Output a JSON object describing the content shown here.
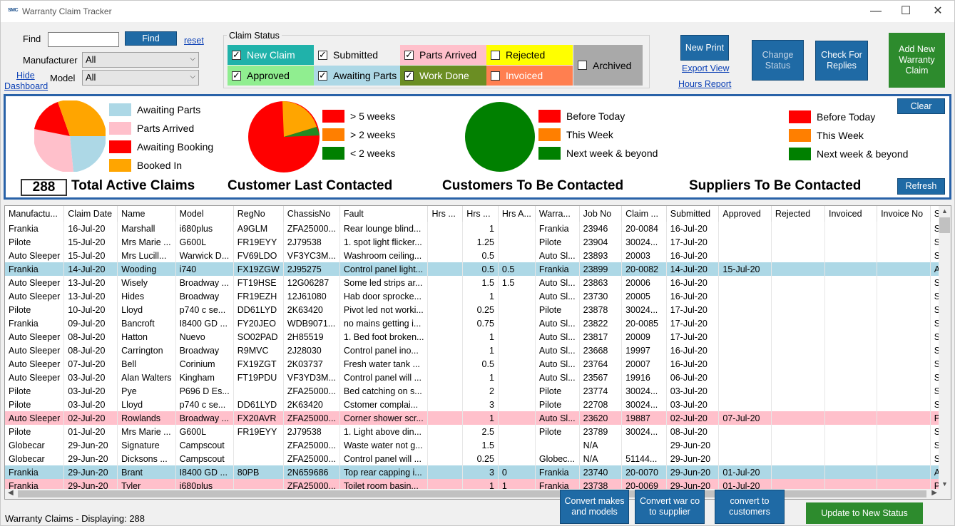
{
  "window": {
    "title": "Warranty Claim Tracker",
    "icon_text": "SMC",
    "minimize": "—",
    "maximize": "☐",
    "close": "✕"
  },
  "filters": {
    "find_label": "Find",
    "find_value": "",
    "find_button": "Find",
    "reset": "reset",
    "manufacturer_label": "Manufacturer",
    "manufacturer_value": "All",
    "model_label": "Model",
    "model_value": "All",
    "hide_dashboard_line1": "Hide",
    "hide_dashboard_line2": "Dashboard"
  },
  "claim_status": {
    "title": "Claim Status",
    "items": [
      {
        "label": "New Claim",
        "checked": true,
        "color": "#20b2aa",
        "text_color": "#ffffff"
      },
      {
        "label": "Submitted",
        "checked": true,
        "color": "#f0f0f0",
        "text_color": "#000000"
      },
      {
        "label": "Parts Arrived",
        "checked": true,
        "color": "#ffc0cb",
        "text_color": "#000000"
      },
      {
        "label": "Rejected",
        "checked": false,
        "color": "#ffff00",
        "text_color": "#000000"
      },
      {
        "label": "Archived",
        "checked": false,
        "color": "#a9a9a9",
        "text_color": "#000000"
      },
      {
        "label": "Approved",
        "checked": true,
        "color": "#90ee90",
        "text_color": "#000000"
      },
      {
        "label": "Awaiting Parts",
        "checked": true,
        "color": "#add8e6",
        "text_color": "#000000"
      },
      {
        "label": "Work Done",
        "checked": true,
        "color": "#6b8e23",
        "text_color": "#ffffff"
      },
      {
        "label": "Invoiced",
        "checked": false,
        "color": "#ff7f50",
        "text_color": "#ffffff"
      }
    ]
  },
  "actions": {
    "new_print": "New Print",
    "export_view": "Export View",
    "hours_report": "Hours Report",
    "change_status": [
      "Change",
      "Status"
    ],
    "check_replies": [
      "Check For",
      "Replies"
    ],
    "add_new": [
      "Add New",
      "Warranty",
      "Claim"
    ]
  },
  "dashboard": {
    "clear": "Clear",
    "refresh": "Refresh",
    "total_count": "288",
    "total_label": "Total Active Claims",
    "status_legend": [
      {
        "label": "Awaiting Parts",
        "color": "#add8e6"
      },
      {
        "label": "Parts Arrived",
        "color": "#ffc0cb"
      },
      {
        "label": "Awaiting Booking",
        "color": "#ff0000"
      },
      {
        "label": "Booked In",
        "color": "#ffa500"
      }
    ],
    "customer_last_contacted": {
      "title": "Customer Last Contacted",
      "legend": [
        {
          "label": "> 5 weeks",
          "color": "#ff0000"
        },
        {
          "label": "> 2 weeks",
          "color": "#ff7f00"
        },
        {
          "label": "< 2 weeks",
          "color": "#008000"
        }
      ]
    },
    "customers_to_contact": {
      "title": "Customers To Be Contacted",
      "legend": [
        {
          "label": "Before Today",
          "color": "#ff0000"
        },
        {
          "label": "This Week",
          "color": "#ff7f00"
        },
        {
          "label": "Next week & beyond",
          "color": "#008000"
        }
      ]
    },
    "suppliers_to_contact": {
      "title": "Suppliers To Be Contacted",
      "legend": [
        {
          "label": "Before Today",
          "color": "#ff0000"
        },
        {
          "label": "This Week",
          "color": "#ff7f00"
        },
        {
          "label": "Next week & beyond",
          "color": "#008000"
        }
      ]
    }
  },
  "table": {
    "columns": [
      "Manufactu...",
      "Claim Date",
      "Name",
      "Model",
      "RegNo",
      "ChassisNo",
      "Fault",
      "Hrs ...",
      "Hrs ...",
      "Hrs A...",
      "Warra...",
      "Job No",
      "Claim ...",
      "Submitted",
      "Approved",
      "Rejected",
      "Invoiced",
      "Invoice No",
      "S"
    ],
    "rows": [
      {
        "style": "",
        "cells": [
          "Frankia",
          "16-Jul-20",
          "Marshall",
          "i680plus",
          "A9GLM",
          "ZFA25000...",
          "Rear lounge blind...",
          "",
          "1",
          "",
          "Frankia",
          "23946",
          "20-0084",
          "16-Jul-20",
          "",
          "",
          "",
          "",
          "Su"
        ]
      },
      {
        "style": "",
        "cells": [
          "Pilote",
          "15-Jul-20",
          "Mrs Marie ...",
          "G600L",
          "FR19EYY",
          "2J79538",
          "1. spot light flicker...",
          "",
          "1.25",
          "",
          "Pilote",
          "23904",
          "30024...",
          "17-Jul-20",
          "",
          "",
          "",
          "",
          "Su"
        ]
      },
      {
        "style": "",
        "cells": [
          "Auto Sleeper",
          "15-Jul-20",
          "Mrs Lucill...",
          "Warwick D...",
          "FV69LDO",
          "VF3YC3M...",
          "Washroom ceiling...",
          "",
          "0.5",
          "",
          "Auto Sl...",
          "23893",
          "20003",
          "16-Jul-20",
          "",
          "",
          "",
          "",
          "Su"
        ]
      },
      {
        "style": "sel",
        "cells": [
          "Frankia",
          "14-Jul-20",
          "Wooding",
          "i740",
          "FX19ZGW",
          "2J95275",
          "Control panel light...",
          "",
          "0.5",
          "0.5",
          "Frankia",
          "23899",
          "20-0082",
          "14-Jul-20",
          "15-Jul-20",
          "",
          "",
          "",
          "Aw"
        ]
      },
      {
        "style": "",
        "cells": [
          "Auto Sleeper",
          "13-Jul-20",
          "Wisely",
          "Broadway ...",
          "FT19HSE",
          "12G06287",
          "Some led strips ar...",
          "",
          "1.5",
          "1.5",
          "Auto Sl...",
          "23863",
          "20006",
          "16-Jul-20",
          "",
          "",
          "",
          "",
          "Su"
        ]
      },
      {
        "style": "",
        "cells": [
          "Auto Sleeper",
          "13-Jul-20",
          "Hides",
          "Broadway",
          "FR19EZH",
          "12J61080",
          "Hab door sprocke...",
          "",
          "1",
          "",
          "Auto Sl...",
          "23730",
          "20005",
          "16-Jul-20",
          "",
          "",
          "",
          "",
          "Su"
        ]
      },
      {
        "style": "",
        "cells": [
          "Pilote",
          "10-Jul-20",
          "Lloyd",
          "p740 c se...",
          "DD61LYD",
          "2K63420",
          "Pivot led not worki...",
          "",
          "0.25",
          "",
          "Pilote",
          "23878",
          "30024...",
          "17-Jul-20",
          "",
          "",
          "",
          "",
          "Su"
        ]
      },
      {
        "style": "",
        "cells": [
          "Frankia",
          "09-Jul-20",
          "Bancroft",
          "I8400 GD ...",
          "FY20JEO",
          "WDB9071...",
          "no mains getting i...",
          "",
          "0.75",
          "",
          "Auto Sl...",
          "23822",
          "20-0085",
          "17-Jul-20",
          "",
          "",
          "",
          "",
          "Su"
        ]
      },
      {
        "style": "",
        "cells": [
          "Auto Sleeper",
          "08-Jul-20",
          "Hatton",
          "Nuevo",
          "SO02PAD",
          "2H85519",
          "1. Bed foot broken...",
          "",
          "1",
          "",
          "Auto Sl...",
          "23817",
          "20009",
          "17-Jul-20",
          "",
          "",
          "",
          "",
          "Su"
        ]
      },
      {
        "style": "",
        "cells": [
          "Auto Sleeper",
          "08-Jul-20",
          "Carrington",
          "Broadway",
          "R9MVC",
          "2J28030",
          "Control panel ino...",
          "",
          "1",
          "",
          "Auto Sl...",
          "23668",
          "19997",
          "16-Jul-20",
          "",
          "",
          "",
          "",
          "Su"
        ]
      },
      {
        "style": "",
        "cells": [
          "Auto Sleeper",
          "07-Jul-20",
          "Bell",
          "Corinium",
          "FX19ZGT",
          "2K03737",
          "Fresh water tank ...",
          "",
          "0.5",
          "",
          "Auto Sl...",
          "23764",
          "20007",
          "16-Jul-20",
          "",
          "",
          "",
          "",
          "Su"
        ]
      },
      {
        "style": "",
        "cells": [
          "Auto Sleeper",
          "03-Jul-20",
          "Alan Walters",
          "Kingham",
          "FT19PDU",
          "VF3YD3M...",
          "Control panel will ...",
          "",
          "1",
          "",
          "Auto Sl...",
          "23567",
          "19916",
          "06-Jul-20",
          "",
          "",
          "",
          "",
          "Su"
        ]
      },
      {
        "style": "",
        "cells": [
          "Pilote",
          "03-Jul-20",
          "Pye",
          "P696 D Es...",
          "",
          "ZFA25000...",
          "Bed catching on s...",
          "",
          "2",
          "",
          "Pilote",
          "23774",
          "30024...",
          "03-Jul-20",
          "",
          "",
          "",
          "",
          "Su"
        ]
      },
      {
        "style": "",
        "cells": [
          "Pilote",
          "03-Jul-20",
          "Lloyd",
          "p740 c se...",
          "DD61LYD",
          "2K63420",
          "Cstomer complai...",
          "",
          "3",
          "",
          "Pilote",
          "22708",
          "30024...",
          "03-Jul-20",
          "",
          "",
          "",
          "",
          "Su"
        ]
      },
      {
        "style": "pink",
        "cells": [
          "Auto Sleeper",
          "02-Jul-20",
          "Rowlands",
          "Broadway ...",
          "FX20AVR",
          "ZFA25000...",
          "Corner shower scr...",
          "",
          "1",
          "",
          "Auto Sl...",
          "23620",
          "19887",
          "02-Jul-20",
          "07-Jul-20",
          "",
          "",
          "",
          "Pa"
        ]
      },
      {
        "style": "",
        "cells": [
          "Pilote",
          "01-Jul-20",
          "Mrs Marie ...",
          "G600L",
          "FR19EYY",
          "2J79538",
          "1. Light above din...",
          "",
          "2.5",
          "",
          "Pilote",
          "23789",
          "30024...",
          "08-Jul-20",
          "",
          "",
          "",
          "",
          "Su"
        ]
      },
      {
        "style": "",
        "cells": [
          "Globecar",
          "29-Jun-20",
          "Signature",
          "Campscout",
          "",
          "ZFA25000...",
          "Waste water not g...",
          "",
          "1.5",
          "",
          "",
          "N/A",
          "",
          "29-Jun-20",
          "",
          "",
          "",
          "",
          "Su"
        ]
      },
      {
        "style": "",
        "cells": [
          "Globecar",
          "29-Jun-20",
          "Dicksons ...",
          "Campscout",
          "",
          "ZFA25000...",
          "Control panel will ...",
          "",
          "0.25",
          "",
          "Globec...",
          "N/A",
          "51144...",
          "29-Jun-20",
          "",
          "",
          "",
          "",
          "Su"
        ]
      },
      {
        "style": "sel",
        "cells": [
          "Frankia",
          "29-Jun-20",
          "Brant",
          "I8400 GD ...",
          "80PB",
          "2N659686",
          "Top rear capping i...",
          "",
          "3",
          "0",
          "Frankia",
          "23740",
          "20-0070",
          "29-Jun-20",
          "01-Jul-20",
          "",
          "",
          "",
          "Aw"
        ]
      },
      {
        "style": "pink",
        "cells": [
          "Frankia",
          "29-Jun-20",
          "Tyler",
          "i680plus",
          "",
          "ZFA25000...",
          "Toilet room basin...",
          "",
          "1",
          "1",
          "Frankia",
          "23738",
          "20-0069",
          "29-Jun-20",
          "01-Jul-20",
          "",
          "",
          "",
          "Pa"
        ]
      }
    ]
  },
  "bottom": {
    "status_text": "Warranty Claims - Displaying: 288",
    "convert_makes": [
      "Convert makes",
      "and models"
    ],
    "convert_war": [
      "Convert war co",
      "to supplier"
    ],
    "convert_customers": [
      "convert to",
      "customers"
    ],
    "update_status": "Update to New Status"
  }
}
